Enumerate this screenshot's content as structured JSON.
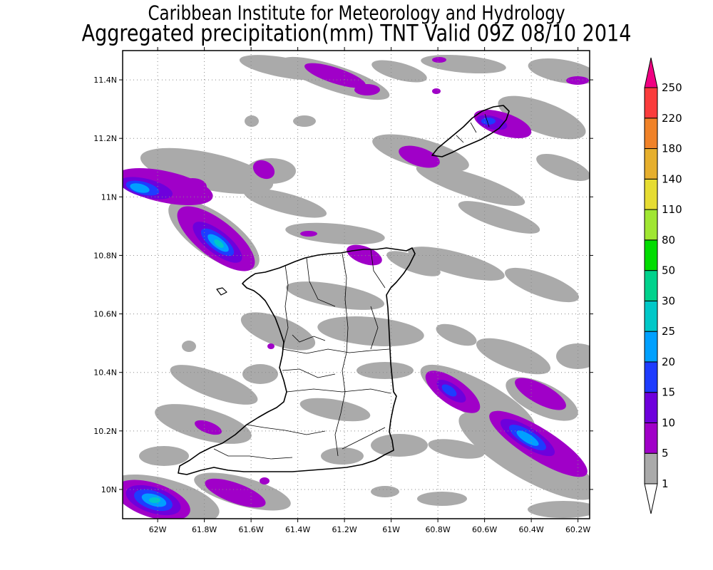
{
  "title_line1": "Caribbean Institute for Meteorology and Hydrology",
  "title_line2": "Aggregated precipitation(mm) TNT Valid 09Z 08/10 2014",
  "map": {
    "lon_range": [
      -62.15,
      -60.15
    ],
    "lat_range": [
      9.9,
      11.5
    ],
    "x_ticks": [
      {
        "v": -62.0,
        "label": "62W"
      },
      {
        "v": -61.8,
        "label": "61.8W"
      },
      {
        "v": -61.6,
        "label": "61.6W"
      },
      {
        "v": -61.4,
        "label": "61.4W"
      },
      {
        "v": -61.2,
        "label": "61.2W"
      },
      {
        "v": -61.0,
        "label": "61W"
      },
      {
        "v": -60.8,
        "label": "60.8W"
      },
      {
        "v": -60.6,
        "label": "60.6W"
      },
      {
        "v": -60.4,
        "label": "60.4W"
      },
      {
        "v": -60.2,
        "label": "60.2W"
      }
    ],
    "y_ticks": [
      {
        "v": 10.0,
        "label": "10N"
      },
      {
        "v": 10.2,
        "label": "10.2N"
      },
      {
        "v": 10.4,
        "label": "10.4N"
      },
      {
        "v": 10.6,
        "label": "10.6N"
      },
      {
        "v": 10.8,
        "label": "10.8N"
      },
      {
        "v": 11.0,
        "label": "11N"
      },
      {
        "v": 11.2,
        "label": "11.2N"
      },
      {
        "v": 11.4,
        "label": "11.4N"
      }
    ],
    "grid": true
  },
  "colorbar": {
    "levels": [
      "1",
      "5",
      "10",
      "15",
      "20",
      "25",
      "30",
      "50",
      "80",
      "110",
      "140",
      "180",
      "220",
      "250"
    ],
    "colors": [
      "#aaaaaa",
      "#a000c8",
      "#6e00dc",
      "#1e3cff",
      "#00a0ff",
      "#00c8c8",
      "#00d28c",
      "#00dc00",
      "#a0e632",
      "#e6dc32",
      "#e6af2d",
      "#f08228",
      "#fa3c3c",
      "#f00082"
    ],
    "under_color": "#ffffff"
  }
}
